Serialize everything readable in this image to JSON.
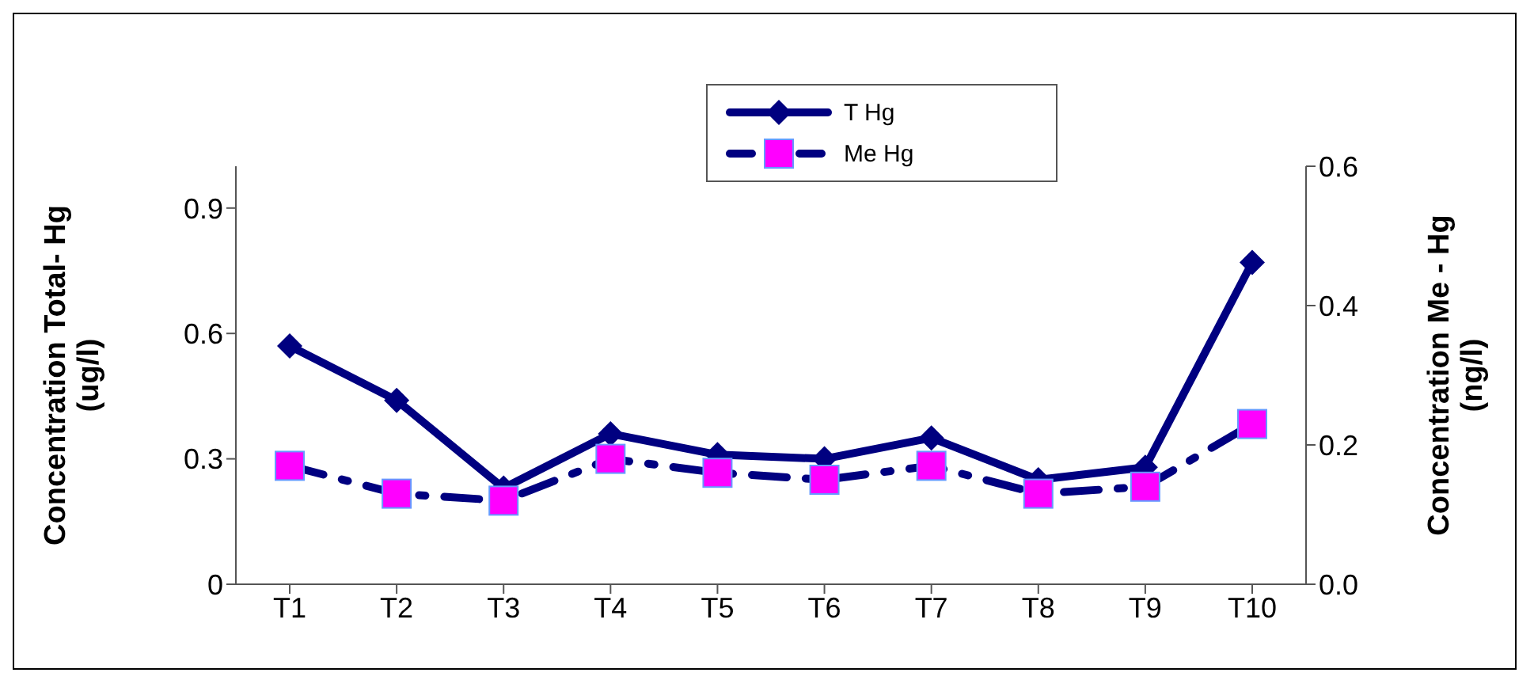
{
  "chart_data": {
    "type": "line",
    "categories": [
      "T1",
      "T2",
      "T3",
      "T4",
      "T5",
      "T6",
      "T7",
      "T8",
      "T9",
      "T10"
    ],
    "series": [
      {
        "name": "T Hg",
        "color": "#000080",
        "marker": "diamond",
        "line_style": "solid",
        "values": [
          0.57,
          0.44,
          0.23,
          0.36,
          0.31,
          0.3,
          0.35,
          0.25,
          0.28,
          0.77
        ]
      },
      {
        "name": "Me Hg",
        "color": "#000080",
        "colors": [
          "#ff00ff",
          "#ff00ff",
          "#ff00ff",
          "#ff00ff",
          "#ff00ff",
          "#ff00ff",
          "#ff00ff",
          "#ff00ff",
          "#ff00ff",
          "#ff00ff"
        ],
        "marker": "square",
        "line_style": "dashed",
        "axis": "y2",
        "values": [
          0.17,
          0.13,
          0.12,
          0.18,
          0.16,
          0.15,
          0.17,
          0.13,
          0.14,
          0.23
        ]
      }
    ],
    "ylabel": "Concentration Total- Hg (ug/l)",
    "y2label": "Concentration Me - Hg (ng/l)",
    "ylim": [
      0,
      1
    ],
    "yticks": [
      0,
      {
        "value": 0.3,
        "label": "0.3"
      },
      {
        "value": 0.6,
        "label": "0.6"
      },
      {
        "value": 0.9,
        "label": "0.9"
      }
    ],
    "y2lim": [
      0,
      0.6
    ],
    "y2ticks": [
      {
        "value": 0,
        "label": "0.0"
      },
      {
        "value": 0.2,
        "label": "0.2"
      },
      {
        "value": 0.4,
        "label": "0.4"
      },
      {
        "value": 0.6,
        "label": "0.6"
      }
    ],
    "legend": "top"
  }
}
